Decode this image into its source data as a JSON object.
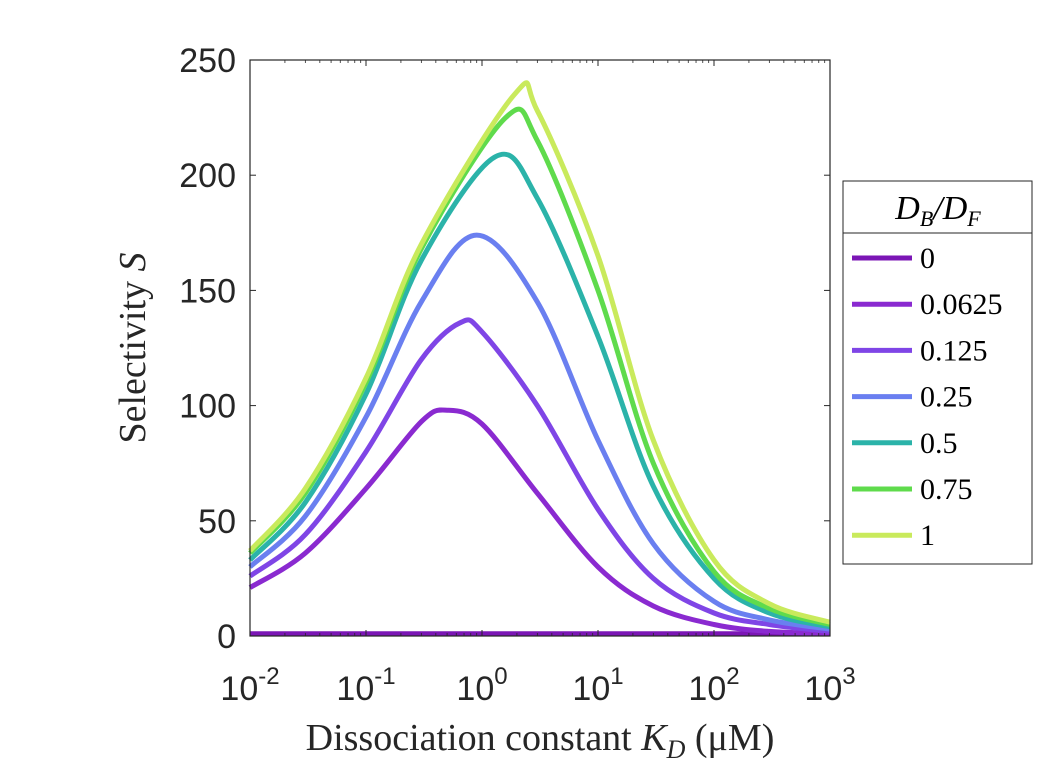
{
  "chart_data": {
    "type": "line",
    "xscale": "log",
    "xlim": [
      0.01,
      1000
    ],
    "ylim": [
      0,
      250
    ],
    "x_ticks": [
      {
        "value": 0.01,
        "base": "10",
        "exp": "-2"
      },
      {
        "value": 0.1,
        "base": "10",
        "exp": "-1"
      },
      {
        "value": 1,
        "base": "10",
        "exp": "0"
      },
      {
        "value": 10,
        "base": "10",
        "exp": "1"
      },
      {
        "value": 100,
        "base": "10",
        "exp": "2"
      },
      {
        "value": 1000,
        "base": "10",
        "exp": "3"
      }
    ],
    "y_ticks": [
      0,
      50,
      100,
      150,
      200,
      250
    ],
    "xlabel": "Dissociation constant K_D (μM)",
    "ylabel": "Selectivity S",
    "grid": false,
    "legend": {
      "title": "D_B/D_F",
      "placement": "outside-right"
    },
    "series": [
      {
        "name": "0",
        "color": "#7b16b5",
        "peak_x": 1,
        "peak_y": 1,
        "x": [
          0.01,
          1000
        ],
        "y": [
          1,
          1
        ]
      },
      {
        "name": "0.0625",
        "color": "#8a2ad0",
        "peak_x": 0.5,
        "peak_y": 98,
        "x": [
          0.01,
          0.03,
          0.1,
          0.3,
          0.5,
          1,
          3,
          10,
          30,
          100,
          300,
          1000
        ],
        "y": [
          21,
          36,
          64,
          93,
          98,
          92,
          62,
          30,
          13,
          5,
          2,
          1
        ]
      },
      {
        "name": "0.125",
        "color": "#7f45e6",
        "peak_x": 0.65,
        "peak_y": 136,
        "x": [
          0.01,
          0.03,
          0.1,
          0.3,
          0.65,
          1,
          3,
          10,
          30,
          100,
          300,
          1000
        ],
        "y": [
          26,
          44,
          80,
          120,
          136,
          132,
          100,
          55,
          25,
          10,
          5,
          2
        ]
      },
      {
        "name": "0.25",
        "color": "#6a7ff0",
        "peak_x": 0.9,
        "peak_y": 174,
        "x": [
          0.01,
          0.03,
          0.1,
          0.3,
          0.9,
          3,
          10,
          30,
          100,
          300,
          1000
        ],
        "y": [
          30,
          52,
          95,
          145,
          174,
          145,
          85,
          40,
          15,
          7,
          3
        ]
      },
      {
        "name": "0.5",
        "color": "#2bb3a9",
        "peak_x": 1.3,
        "peak_y": 208,
        "x": [
          0.01,
          0.03,
          0.1,
          0.3,
          1.3,
          3,
          10,
          30,
          100,
          300,
          1000
        ],
        "y": [
          33,
          58,
          105,
          163,
          208,
          190,
          130,
          65,
          25,
          10,
          4
        ]
      },
      {
        "name": "0.75",
        "color": "#5fdb4c",
        "peak_x": 1.6,
        "peak_y": 225,
        "x": [
          0.01,
          0.03,
          0.1,
          0.3,
          1.6,
          3,
          10,
          30,
          100,
          300,
          1000
        ],
        "y": [
          36,
          62,
          110,
          168,
          225,
          215,
          150,
          75,
          28,
          12,
          5
        ]
      },
      {
        "name": "1",
        "color": "#c9ea5c",
        "peak_x": 1.9,
        "peak_y": 235,
        "x": [
          0.01,
          0.03,
          0.1,
          0.3,
          1.9,
          3,
          10,
          30,
          100,
          300,
          1000
        ],
        "y": [
          37,
          64,
          112,
          170,
          235,
          228,
          165,
          85,
          33,
          14,
          6
        ]
      }
    ]
  }
}
